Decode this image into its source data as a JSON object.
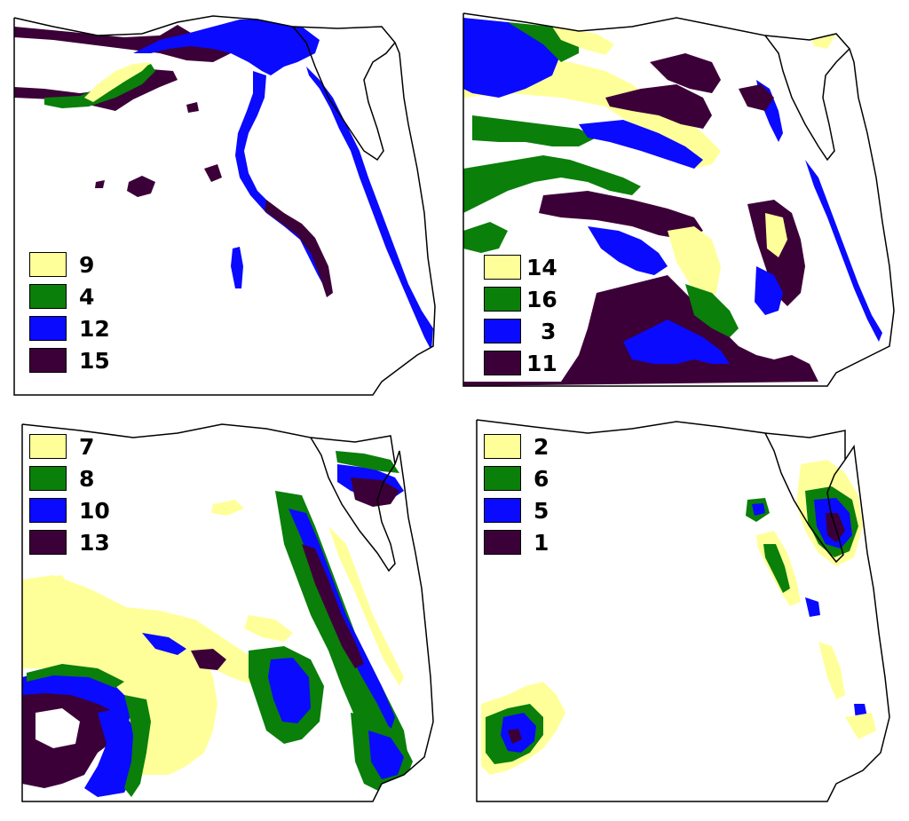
{
  "colors": {
    "yellow": "#ffff99",
    "green": "#0a7f0a",
    "blue": "#0a0aff",
    "purple": "#3c0038",
    "outline": "#000000",
    "background": "#ffffff"
  },
  "panels": [
    {
      "id": "top-left",
      "legend": [
        {
          "label": "9",
          "color": "#ffff99"
        },
        {
          "label": "4",
          "color": "#0a7f0a"
        },
        {
          "label": "12",
          "color": "#0a0aff"
        },
        {
          "label": "15",
          "color": "#3c0038"
        }
      ]
    },
    {
      "id": "top-right",
      "legend": [
        {
          "label": "14",
          "color": "#ffff99"
        },
        {
          "label": "16",
          "color": "#0a7f0a"
        },
        {
          "label": "3",
          "color": "#0a0aff"
        },
        {
          "label": "11",
          "color": "#3c0038"
        }
      ]
    },
    {
      "id": "bottom-left",
      "legend": [
        {
          "label": "7",
          "color": "#ffff99"
        },
        {
          "label": "8",
          "color": "#0a7f0a"
        },
        {
          "label": "10",
          "color": "#0a0aff"
        },
        {
          "label": "13",
          "color": "#3c0038"
        }
      ]
    },
    {
      "id": "bottom-right",
      "legend": [
        {
          "label": "2",
          "color": "#ffff99"
        },
        {
          "label": "6",
          "color": "#0a7f0a"
        },
        {
          "label": "5",
          "color": "#0a0aff"
        },
        {
          "label": "1",
          "color": "#3c0038"
        }
      ]
    }
  ]
}
